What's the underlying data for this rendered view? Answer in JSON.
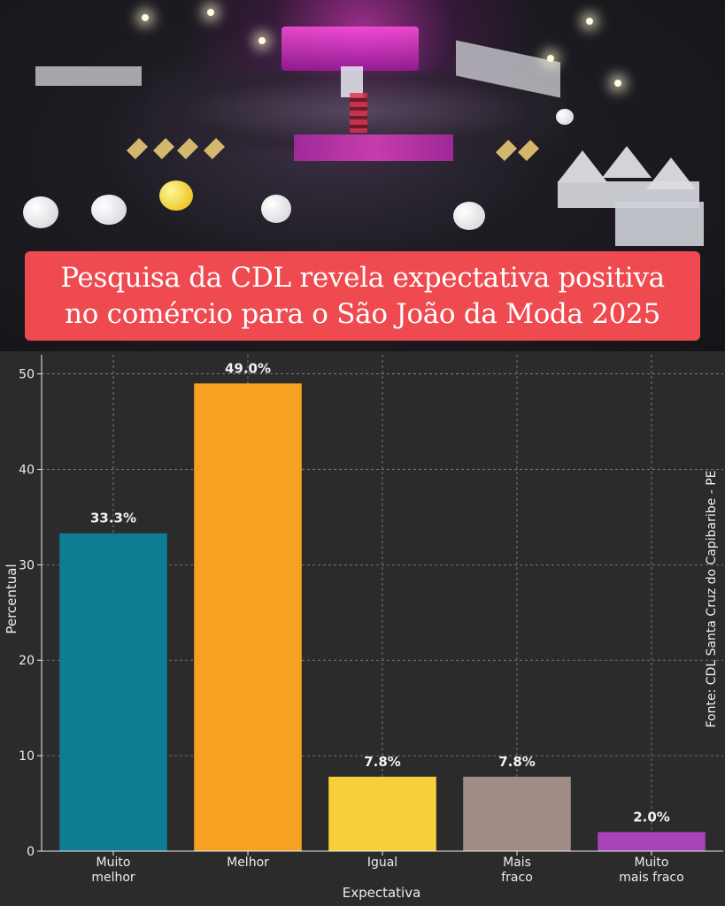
{
  "headline": "Pesquisa da CDL revela expectativa positiva\nno comércio para o São João da Moda 2025",
  "source_note": "Fonte: CDL Santa Cruz do Capibaribe - PE",
  "colors": {
    "headline_bg": "#ef4a4f",
    "chart_bg": "#2b2b2b",
    "grid": "#8a8a8a",
    "text": "#ececec"
  },
  "chart_data": {
    "type": "bar",
    "title": "",
    "xlabel": "Expectativa",
    "ylabel": "Percentual",
    "ylim": [
      0,
      52
    ],
    "yticks": [
      0,
      10,
      20,
      30,
      40,
      50
    ],
    "grid": true,
    "categories": [
      "Muito\nmelhor",
      "Melhor",
      "Igual",
      "Mais\nfraco",
      "Muito\nmais fraco"
    ],
    "values": [
      33.3,
      49.0,
      7.8,
      7.8,
      2.0
    ],
    "value_labels": [
      "33.3%",
      "49.0%",
      "7.8%",
      "7.8%",
      "2.0%"
    ],
    "bar_colors": [
      "#0d7d94",
      "#f6a121",
      "#f7cf3a",
      "#a08c84",
      "#a842b8"
    ]
  }
}
